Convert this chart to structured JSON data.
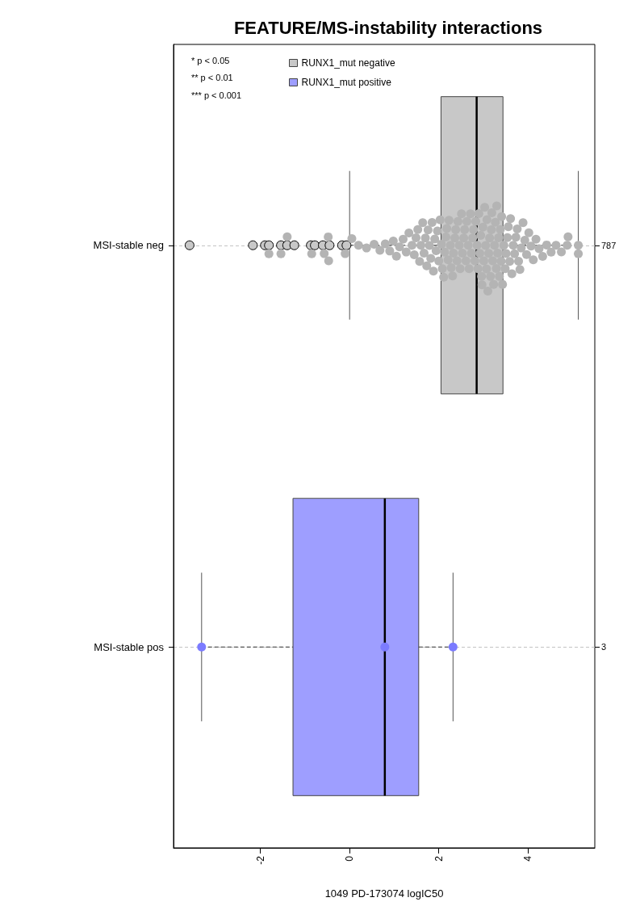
{
  "chart_data": {
    "type": "box",
    "orientation": "horizontal",
    "title": "FEATURE/MS-instability interactions",
    "xlabel": "1049 PD-173074 logIC50",
    "categories": [
      "MSI-stable neg",
      "MSI-stable pos"
    ],
    "y2_categories": [
      "787",
      "3"
    ],
    "xlim": [
      -3.95,
      5.5
    ],
    "xticks": [
      -2,
      0,
      2,
      4
    ],
    "grid": "y",
    "legend": "top left",
    "marker": "circle",
    "annotations": [
      "* p < 0.05",
      "** p < 0.01",
      "*** p < 0.001"
    ],
    "series": [
      {
        "name": "RUNX1_mut negative",
        "color": "#c8c8c8",
        "boxes": [
          {
            "low": 0,
            "q1": 2.05,
            "median": 2.85,
            "q3": 3.44,
            "high": 5.13,
            "outliers": [
              -3.59,
              -2.17,
              -1.9,
              -1.81,
              -1.54,
              -1.4,
              -1.24,
              -0.87,
              -0.78,
              -0.6,
              -0.45,
              -0.17,
              -0.07
            ]
          },
          null
        ]
      },
      {
        "name": "RUNX1_mut positive",
        "color": "#9e9eff",
        "boxes": [
          null,
          {
            "low": -3.32,
            "q1": -1.27,
            "median": 0.79,
            "q3": 1.55,
            "high": 2.32
          }
        ]
      },
      {
        "type": "scatter",
        "color": "#b4b4b4",
        "x": [
          "MSI-stable neg",
          "MSI-stable neg",
          "MSI-stable neg",
          "MSI-stable neg",
          "MSI-stable neg",
          "MSI-stable neg",
          "MSI-stable neg",
          "MSI-stable neg",
          "MSI-stable neg",
          "MSI-stable neg",
          "MSI-stable neg",
          "MSI-stable neg",
          "MSI-stable neg",
          "MSI-stable neg",
          "MSI-stable neg",
          "MSI-stable neg",
          "MSI-stable neg",
          "MSI-stable neg",
          "MSI-stable neg",
          "MSI-stable neg",
          "MSI-stable neg",
          "MSI-stable neg",
          "MSI-stable neg",
          "MSI-stable neg",
          "MSI-stable neg",
          "MSI-stable neg",
          "MSI-stable neg",
          "MSI-stable neg",
          "MSI-stable neg",
          "MSI-stable neg",
          "MSI-stable neg",
          "MSI-stable neg",
          "MSI-stable neg",
          "MSI-stable neg",
          "MSI-stable neg",
          "MSI-stable neg",
          "MSI-stable neg",
          "MSI-stable neg",
          "MSI-stable neg",
          "MSI-stable neg",
          "MSI-stable neg",
          "MSI-stable neg",
          "MSI-stable neg",
          "MSI-stable neg",
          "MSI-stable neg",
          "MSI-stable neg",
          "MSI-stable neg",
          "MSI-stable neg",
          "MSI-stable neg",
          "MSI-stable neg",
          "MSI-stable neg",
          "MSI-stable neg",
          "MSI-stable neg",
          "MSI-stable neg",
          "MSI-stable neg",
          "MSI-stable neg",
          "MSI-stable neg",
          "MSI-stable neg",
          "MSI-stable neg",
          "MSI-stable neg",
          "MSI-stable neg",
          "MSI-stable neg",
          "MSI-stable neg",
          "MSI-stable neg",
          "MSI-stable neg",
          "MSI-stable neg",
          "MSI-stable neg",
          "MSI-stable neg",
          "MSI-stable neg",
          "MSI-stable neg",
          "MSI-stable neg",
          "MSI-stable neg",
          "MSI-stable neg",
          "MSI-stable neg",
          "MSI-stable neg",
          "MSI-stable neg",
          "MSI-stable neg",
          "MSI-stable neg",
          "MSI-stable neg",
          "MSI-stable neg",
          "MSI-stable neg",
          "MSI-stable neg",
          "MSI-stable neg",
          "MSI-stable neg",
          "MSI-stable neg",
          "MSI-stable neg",
          "MSI-stable neg",
          "MSI-stable neg",
          "MSI-stable neg",
          "MSI-stable neg",
          "MSI-stable neg",
          "MSI-stable neg",
          "MSI-stable neg",
          "MSI-stable neg",
          "MSI-stable neg",
          "MSI-stable neg",
          "MSI-stable neg",
          "MSI-stable neg",
          "MSI-stable neg",
          "MSI-stable neg",
          "MSI-stable neg",
          "MSI-stable neg",
          "MSI-stable neg",
          "MSI-stable neg",
          "MSI-stable neg",
          "MSI-stable neg",
          "MSI-stable neg",
          "MSI-stable neg",
          "MSI-stable neg",
          "MSI-stable neg",
          "MSI-stable neg",
          "MSI-stable neg",
          "MSI-stable neg",
          "MSI-stable neg",
          "MSI-stable neg",
          "MSI-stable neg",
          "MSI-stable neg",
          "MSI-stable neg",
          "MSI-stable neg",
          "MSI-stable neg",
          "MSI-stable neg",
          "MSI-stable neg",
          "MSI-stable neg",
          "MSI-stable neg",
          "MSI-stable neg",
          "MSI-stable neg",
          "MSI-stable neg",
          "MSI-stable neg",
          "MSI-stable neg",
          "MSI-stable neg",
          "MSI-stable neg",
          "MSI-stable neg",
          "MSI-stable neg",
          "MSI-stable neg",
          "MSI-stable neg",
          "MSI-stable neg",
          "MSI-stable neg"
        ],
        "values": [
          -1.81,
          -1.54,
          -1.4,
          -0.85,
          -0.57,
          -0.48,
          -0.47,
          -0.1,
          0.05,
          0.2,
          0.38,
          0.55,
          0.68,
          0.8,
          0.9,
          0.98,
          1.05,
          1.12,
          1.2,
          1.27,
          1.33,
          1.4,
          1.45,
          1.49,
          1.53,
          1.57,
          1.6,
          1.64,
          1.67,
          1.7,
          1.73,
          1.76,
          1.79,
          1.82,
          1.85,
          1.88,
          1.91,
          1.94,
          1.97,
          2.0,
          2.03,
          2.06,
          2.08,
          2.11,
          2.13,
          2.16,
          2.18,
          2.21,
          2.23,
          2.26,
          2.28,
          2.31,
          2.33,
          2.36,
          2.38,
          2.41,
          2.43,
          2.46,
          2.48,
          2.51,
          2.53,
          2.56,
          2.58,
          2.61,
          2.63,
          2.66,
          2.68,
          2.71,
          2.73,
          2.76,
          2.78,
          2.81,
          2.83,
          2.86,
          2.88,
          2.9,
          2.92,
          2.94,
          2.96,
          2.97,
          2.99,
          3.01,
          3.03,
          3.05,
          3.07,
          3.08,
          3.1,
          3.12,
          3.14,
          3.16,
          3.18,
          3.19,
          3.21,
          3.23,
          3.25,
          3.27,
          3.29,
          3.3,
          3.32,
          3.34,
          3.36,
          3.38,
          3.4,
          3.41,
          3.43,
          3.46,
          3.49,
          3.51,
          3.54,
          3.56,
          3.59,
          3.61,
          3.64,
          3.67,
          3.7,
          3.73,
          3.76,
          3.79,
          3.82,
          3.85,
          3.89,
          3.93,
          3.97,
          4.02,
          4.07,
          4.12,
          4.18,
          4.25,
          4.33,
          4.42,
          4.52,
          4.63,
          4.75,
          4.88,
          4.9,
          5.13,
          5.13
        ]
      },
      {
        "type": "scatter",
        "color": "#7b7bff",
        "x": [
          "MSI-stable pos",
          "MSI-stable pos",
          "MSI-stable pos"
        ],
        "values": [
          -3.32,
          0.79,
          2.32
        ]
      }
    ]
  }
}
